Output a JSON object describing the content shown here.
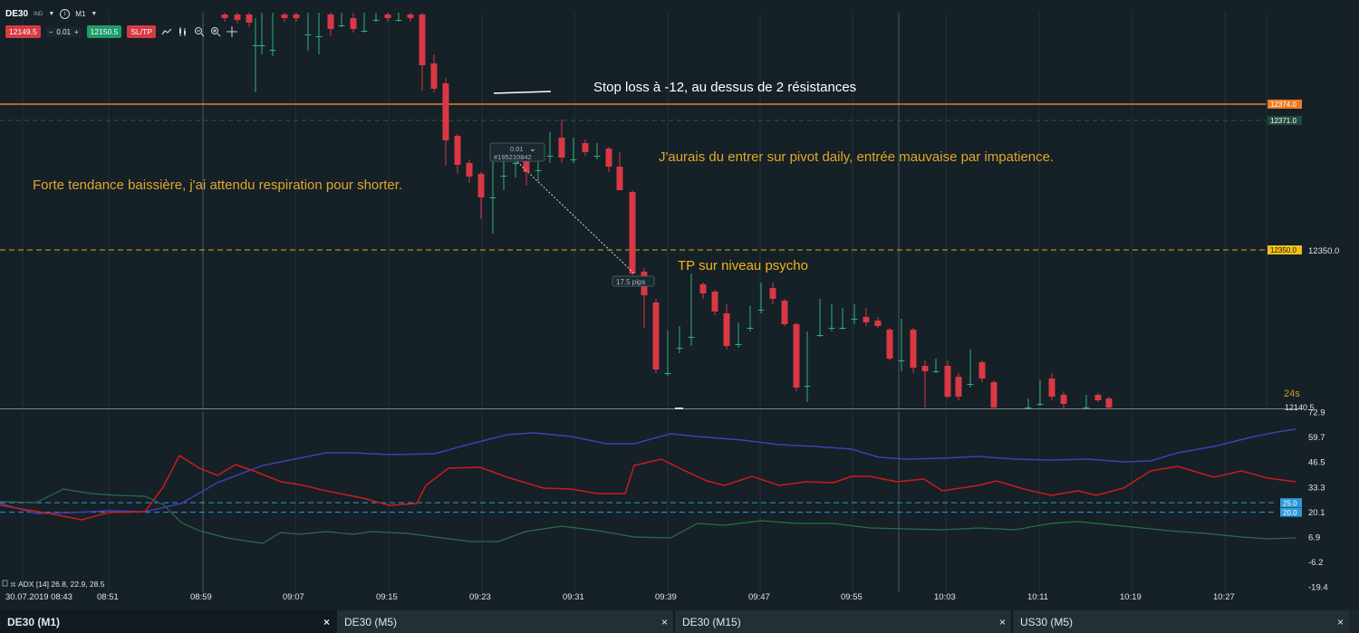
{
  "toolbar": {
    "symbol": "DE30",
    "symbol_badge": "IND",
    "timeframe": "M1",
    "sell_price": "12149.5",
    "volume_minus": "−",
    "volume": "0.01",
    "volume_plus": "+",
    "buy_price": "12150.5",
    "sltp_label": "SL/TP",
    "icons": [
      "chevron-down-icon",
      "info-icon",
      "line-chart-icon",
      "candles-icon",
      "zoom-out-icon",
      "zoom-in-icon",
      "crosshair-icon"
    ]
  },
  "annotations": {
    "stop_loss_note": "Stop loss à -12, au dessus de 2 résistances",
    "entry_note": "J'aurais du entrer sur pivot daily, entrée mauvaise par impatience.",
    "trend_note": "Forte tendance baissière, j'ai attendu respiration pour shorter.",
    "tp_note": "TP sur niveau psycho"
  },
  "order": {
    "volume_label": "0.01",
    "id_label": "#195210842",
    "pips_label": "17.5 pips"
  },
  "price_axis": {
    "sl_price": "12374.0",
    "upper_dashed_price": "12371.0",
    "tp_price": "12350.0",
    "tp_label_right": "12350.0",
    "current_price": "12140.5",
    "countdown": "24s"
  },
  "indicator": {
    "label": "ADX [14] 26.8, 22.9, 28.5",
    "axis_labels": [
      "72.9",
      "59.7",
      "46.5",
      "33.3",
      "20.1",
      "6.9",
      "-6.2",
      "-19.4"
    ],
    "level_high": "25.0",
    "level_low": "20.0"
  },
  "time_axis": {
    "labels": [
      "30.07.2019 08:43",
      "08:51",
      "08:59",
      "09:07",
      "09:15",
      "09:23",
      "09:31",
      "09:39",
      "09:47",
      "09:55",
      "10:03",
      "10:11",
      "10:19",
      "10:27"
    ]
  },
  "tabs": [
    {
      "label": "DE30 (M1)",
      "close": "×"
    },
    {
      "label": "DE30 (M5)",
      "close": "×"
    },
    {
      "label": "DE30 (M15)",
      "close": "×"
    },
    {
      "label": "US30 (M5)",
      "close": "×"
    }
  ],
  "colors": {
    "background": "#152027",
    "bull": "#2fb27d",
    "bear": "#d93844",
    "stop_loss_line": "#f07a22",
    "take_profit_line": "#e8a21a",
    "annotation_yellow": "#e0a82a",
    "adx": "#3f3fb0",
    "di_minus": "#cc1b1b",
    "di_plus": "#2e6b4a",
    "level_line": "#2f9ad8"
  },
  "chart_data": {
    "type": "candlestick",
    "symbol": "DE30",
    "timeframe": "M1",
    "x_start": "08:43",
    "x_end": "10:33",
    "stop_loss": 12374.0,
    "take_profit": 12350.0,
    "current_price": 12140.5,
    "candles_note": "shape traced from screenshot; approx OHLC"
  }
}
